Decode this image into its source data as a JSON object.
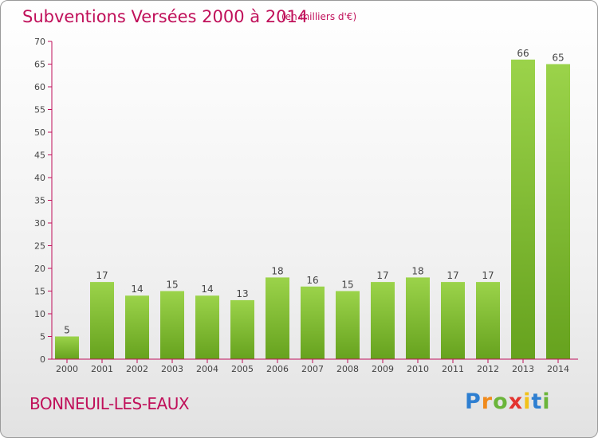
{
  "header": {
    "title": "Subventions Versées 2000 à 2014",
    "subtitle": "(en milliers d'€)"
  },
  "footer": {
    "commune": "BONNEUIL-LES-EAUX",
    "logo_letters": [
      {
        "char": "P",
        "color": "#2e7fd1"
      },
      {
        "char": "r",
        "color": "#f08a1c"
      },
      {
        "char": "o",
        "color": "#6bb53a"
      },
      {
        "char": "x",
        "color": "#e3342f"
      },
      {
        "char": "i",
        "color": "#f2c21a"
      },
      {
        "char": "t",
        "color": "#2e7fd1"
      },
      {
        "char": "i",
        "color": "#6bb53a"
      }
    ]
  },
  "colors": {
    "accent": "#c0105a",
    "bar_light": "#9bd34a",
    "bar_dark": "#66a21e",
    "axis": "#c0105a"
  },
  "chart_data": {
    "type": "bar",
    "categories": [
      "2000",
      "2001",
      "2002",
      "2003",
      "2004",
      "2005",
      "2006",
      "2007",
      "2008",
      "2009",
      "2010",
      "2011",
      "2012",
      "2013",
      "2014"
    ],
    "values": [
      5,
      17,
      14,
      15,
      14,
      13,
      18,
      16,
      15,
      17,
      18,
      17,
      17,
      66,
      65
    ],
    "title": "Subventions Versées 2000 à 2014",
    "subtitle": "(en milliers d'€)",
    "ylim": [
      0,
      70
    ],
    "yticks": [
      0,
      5,
      10,
      15,
      20,
      25,
      30,
      35,
      40,
      45,
      50,
      55,
      60,
      65,
      70
    ],
    "grid": false,
    "data_labels": true
  }
}
